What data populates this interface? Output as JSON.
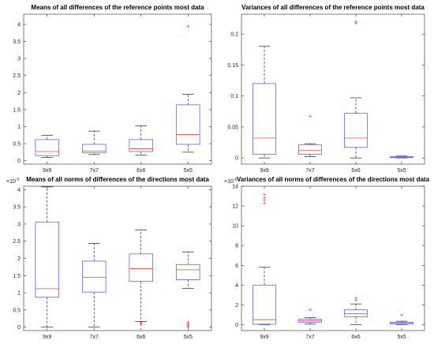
{
  "chart_data": [
    {
      "type": "boxplot",
      "title": "Means of all differences of the reference points most data",
      "categories": [
        "9x9",
        "7x7",
        "6x6",
        "5x5"
      ],
      "ylim": [
        -0.1,
        4.3
      ],
      "yticks": [
        0,
        0.5,
        1,
        1.5,
        2,
        2.5,
        3,
        3.5,
        4
      ],
      "ytick_labels": [
        "0",
        "0.5",
        "1",
        "1.5",
        "2",
        "2.5",
        "3",
        "3.5",
        "4"
      ],
      "exponent": "",
      "boxes": [
        {
          "whisker_low": 0.1,
          "q1": 0.15,
          "median": 0.27,
          "q3": 0.62,
          "whisker_high": 0.75,
          "outliers": []
        },
        {
          "whisker_low": 0.18,
          "q1": 0.23,
          "median": 0.28,
          "q3": 0.48,
          "whisker_high": 0.87,
          "outliers": []
        },
        {
          "whisker_low": 0.16,
          "q1": 0.27,
          "median": 0.35,
          "q3": 0.62,
          "whisker_high": 1.02,
          "outliers": []
        },
        {
          "whisker_low": 0.25,
          "q1": 0.48,
          "median": 0.77,
          "q3": 1.64,
          "whisker_high": 1.95,
          "outliers": [
            3.95
          ]
        }
      ],
      "box_color": "#6464ff",
      "median_color": "#ff4040",
      "outlier_color": "#ff0000"
    },
    {
      "type": "boxplot",
      "title": "Variances of all differences of the reference points most data",
      "categories": [
        "9x9",
        "7x7",
        "6x6",
        "5x5"
      ],
      "ylim": [
        -0.01,
        0.232
      ],
      "yticks": [
        0,
        0.05,
        0.1,
        0.15,
        0.2
      ],
      "ytick_labels": [
        "0",
        "0.05",
        "0.1",
        "0.15",
        "0.2"
      ],
      "exponent": "",
      "boxes": [
        {
          "whisker_low": 0.0,
          "q1": 0.006,
          "median": 0.032,
          "q3": 0.12,
          "whisker_high": 0.18,
          "outliers": []
        },
        {
          "whisker_low": 0.002,
          "q1": 0.006,
          "median": 0.012,
          "q3": 0.021,
          "whisker_high": 0.023,
          "outliers": [
            0.068
          ]
        },
        {
          "whisker_low": 0.0,
          "q1": 0.017,
          "median": 0.032,
          "q3": 0.072,
          "whisker_high": 0.097,
          "outliers": [
            0.218,
            0.22
          ]
        },
        {
          "whisker_low": 0.0,
          "q1": 0.0005,
          "median": 0.001,
          "q3": 0.002,
          "whisker_high": 0.003,
          "outliers": []
        }
      ],
      "box_color": "#6464ff",
      "median_color": "#ff4040",
      "outlier_color": "#ff0000"
    },
    {
      "type": "boxplot",
      "title": "Means of all norms of differences of the directions most data",
      "categories": [
        "9x9",
        "7x7",
        "6x6",
        "5x5"
      ],
      "ylim": [
        -0.0001,
        0.0041
      ],
      "yticks": [
        0,
        0.0005,
        0.001,
        0.0015,
        0.002,
        0.0025,
        0.003,
        0.0035,
        0.004
      ],
      "ytick_labels": [
        "0",
        "0.5",
        "1",
        "1.5",
        "2",
        "2.5",
        "3",
        "3.5",
        "4"
      ],
      "exponent": "-3",
      "boxes": [
        {
          "whisker_low": 0.0,
          "q1": 0.00087,
          "median": 0.00112,
          "q3": 0.00305,
          "whisker_high": 0.00408,
          "outliers": []
        },
        {
          "whisker_low": 0.0,
          "q1": 0.00102,
          "median": 0.00145,
          "q3": 0.00192,
          "whisker_high": 0.00244,
          "outliers": []
        },
        {
          "whisker_low": 0.00016,
          "q1": 0.00133,
          "median": 0.0017,
          "q3": 0.00213,
          "whisker_high": 0.00283,
          "outliers": [
            8e-05,
            0.00012,
            0.00015
          ]
        },
        {
          "whisker_low": 0.00113,
          "q1": 0.00138,
          "median": 0.00167,
          "q3": 0.00182,
          "whisker_high": 0.00219,
          "outliers": [
            0.0,
            5e-05,
            0.0001,
            0.00015
          ]
        }
      ],
      "box_color": "#6464ff",
      "median_color": "#ff4040",
      "outlier_color": "#ff0000"
    },
    {
      "type": "boxplot",
      "title": "Variances of all norms of differences of the directions most data",
      "categories": [
        "9x9",
        "7x7",
        "6x6",
        "5x5"
      ],
      "ylim": [
        -6e-07,
        1.4e-05
      ],
      "yticks": [
        0,
        2e-06,
        4e-06,
        6e-06,
        8e-06,
        1e-05,
        1.2e-05,
        1.4e-05
      ],
      "ytick_labels": [
        "0",
        "2",
        "4",
        "6",
        "8",
        "10",
        "12",
        "14"
      ],
      "exponent": "-6",
      "boxes": [
        {
          "whisker_low": 0.0,
          "q1": 5e-08,
          "median": 5e-07,
          "q3": 4e-06,
          "whisker_high": 5.8e-06,
          "outliers": [
            1.23e-05,
            1.26e-05,
            1.29e-05,
            1.32e-05
          ]
        },
        {
          "whisker_low": 5e-08,
          "q1": 2.5e-07,
          "median": 4e-07,
          "q3": 5.5e-07,
          "whisker_high": 7e-07,
          "outliers": [
            1.5e-06
          ]
        },
        {
          "whisker_low": 0.0,
          "q1": 8e-07,
          "median": 1.1e-06,
          "q3": 1.5e-06,
          "whisker_high": 2.1e-06,
          "outliers": [
            2.5e-06,
            2.7e-06
          ]
        },
        {
          "whisker_low": 0.0,
          "q1": 5e-08,
          "median": 1.5e-07,
          "q3": 2.5e-07,
          "whisker_high": 3.5e-07,
          "outliers": [
            1e-06
          ]
        }
      ],
      "box_color": "#6464ff",
      "median_color": "#ff4040",
      "outlier_color": "#ff0000"
    }
  ]
}
